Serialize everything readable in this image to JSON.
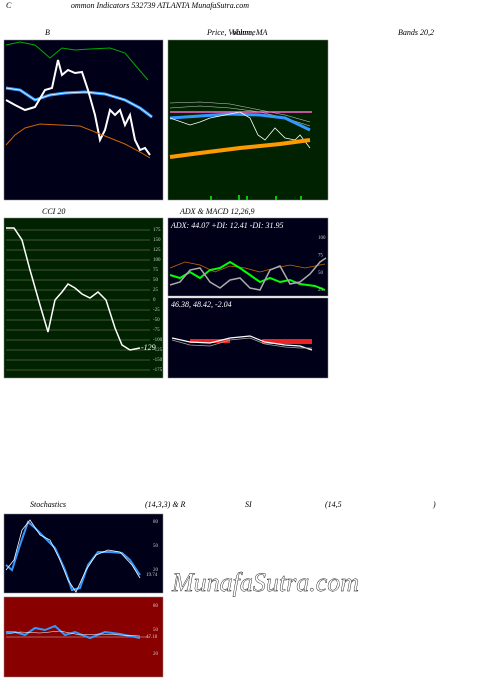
{
  "header": {
    "c": "C",
    "title": "ommon  Indicators 532739 ATLANTA MunafaSutra.com"
  },
  "panels": {
    "bollinger": {
      "title": "B",
      "right": "Bands 20,2"
    },
    "price": {
      "title": "Price, Volume, MA",
      "overlay": "Volume"
    },
    "cci": {
      "title": "CCI 20",
      "ticks": [
        "175",
        "150",
        "125",
        "100",
        "75",
        "50",
        "25",
        "0",
        "-25",
        "-50",
        "-75",
        "-100",
        "-125",
        "-150",
        "-175"
      ],
      "last": "-129"
    },
    "adx": {
      "title": "ADX  & MACD 12,26,9",
      "label": "ADX: 44.07 +DI: 12.41 -DI: 31.95",
      "ticks": [
        "100",
        "75",
        "50",
        "25"
      ]
    },
    "macd": {
      "label": "46.38, 48.42, -2.04"
    },
    "stoch": {
      "title": "Stochastics",
      "params": "(14,3,3) & R",
      "ticks": [
        "80",
        "50",
        "20"
      ],
      "last": "19.74"
    },
    "rsi": {
      "title": "SI",
      "params": "(14,5",
      "close": ")",
      "ticks": [
        "80",
        "50",
        "20"
      ],
      "last": "47.18"
    }
  },
  "watermark": "MunafaSutra.com"
}
